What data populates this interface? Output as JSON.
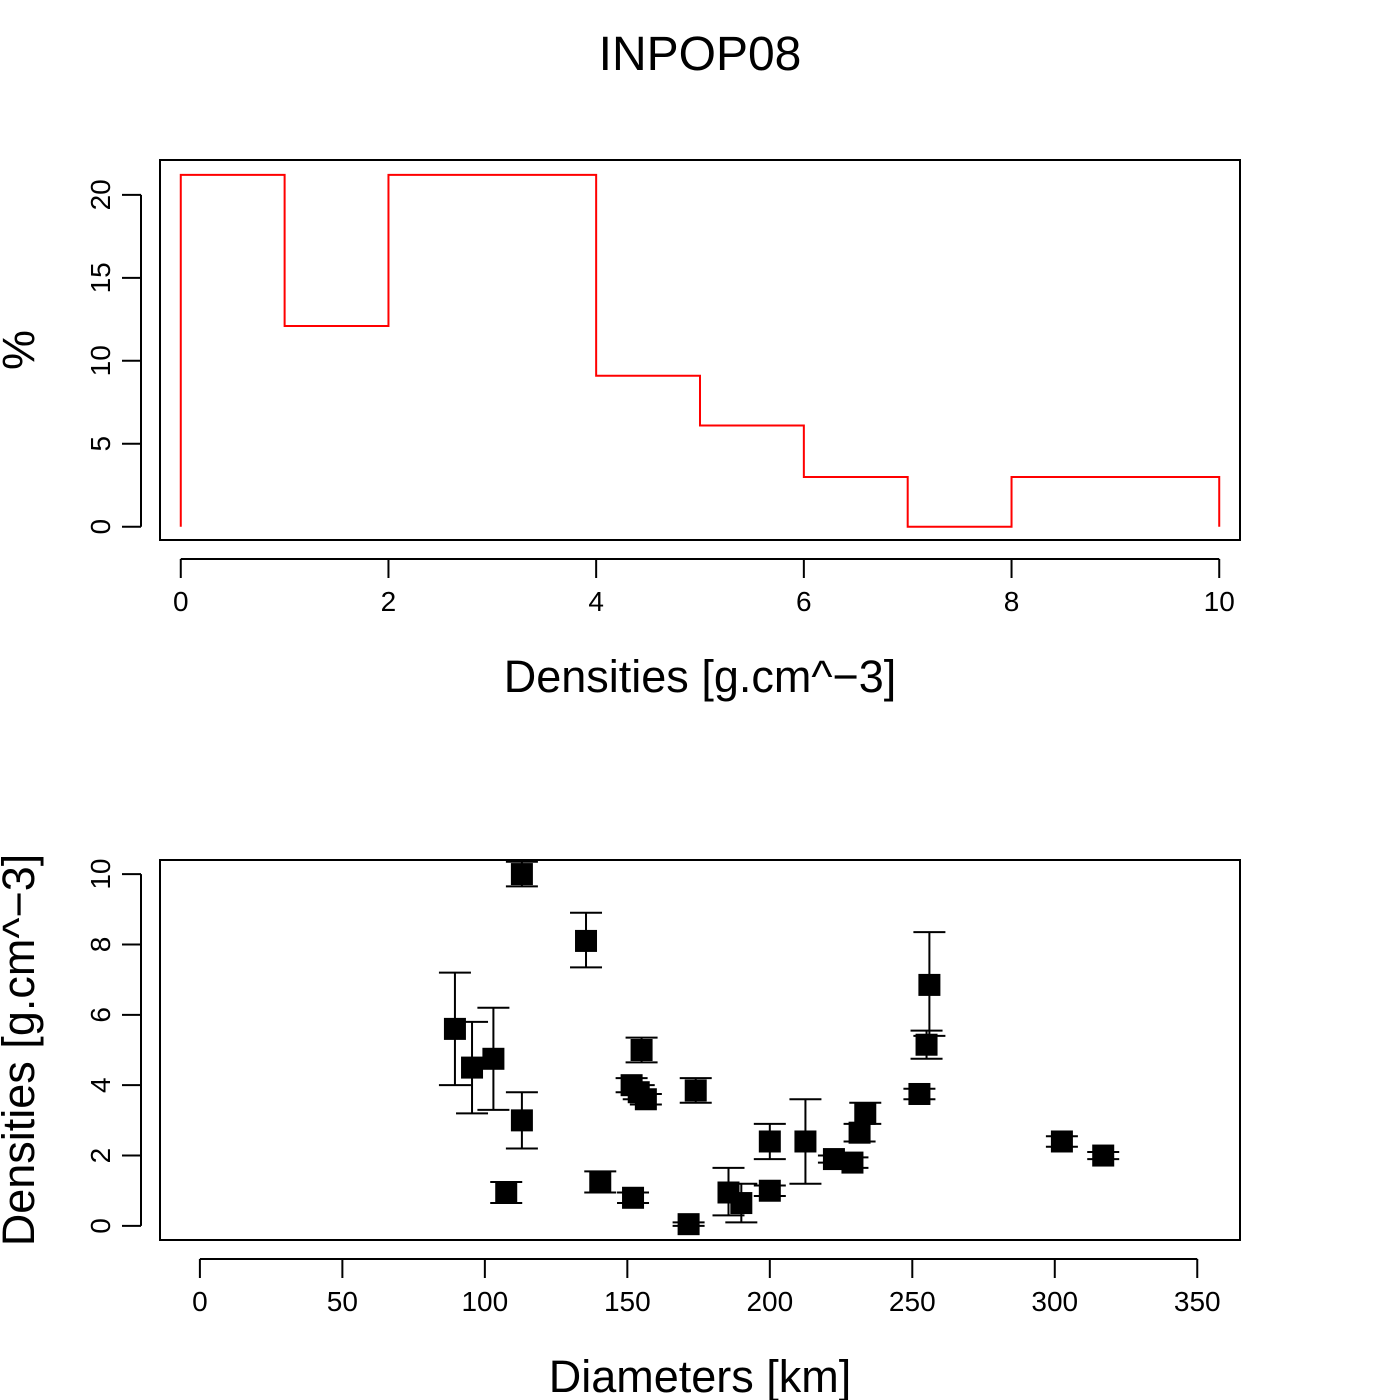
{
  "title": "INPOP08",
  "chart_data": [
    {
      "type": "histogram",
      "xlabel": "Densities [g.cm^−3]",
      "ylabel": "%",
      "xlim": [
        -0.2,
        10.2
      ],
      "ylim": [
        -0.8,
        22.1
      ],
      "xticks": [
        0,
        2,
        4,
        6,
        8,
        10
      ],
      "yticks": [
        0,
        5,
        10,
        15,
        20
      ],
      "line_color": "#ff0000",
      "bins": [
        0,
        1,
        2,
        3,
        4,
        5,
        6,
        7,
        8,
        9,
        10
      ],
      "values": [
        21.2,
        12.1,
        21.2,
        21.2,
        9.1,
        6.1,
        3.0,
        0,
        3.0,
        3.0
      ]
    },
    {
      "type": "scatter",
      "xlabel": "Diameters [km]",
      "ylabel": "Densities [g.cm^−3]",
      "xlim": [
        -14,
        365
      ],
      "ylim": [
        -0.4,
        10.4
      ],
      "xticks": [
        0,
        50,
        100,
        150,
        200,
        250,
        300,
        350
      ],
      "yticks": [
        0,
        2,
        4,
        6,
        8,
        10
      ],
      "marker": "square",
      "marker_color": "#000000",
      "points": [
        {
          "x": 89.5,
          "y": 5.6,
          "lo": 4.0,
          "hi": 7.2
        },
        {
          "x": 95.5,
          "y": 4.5,
          "lo": 3.2,
          "hi": 5.8
        },
        {
          "x": 103,
          "y": 4.75,
          "lo": 3.3,
          "hi": 6.2
        },
        {
          "x": 107.5,
          "y": 0.95,
          "lo": 0.65,
          "hi": 1.25
        },
        {
          "x": 113,
          "y": 3.0,
          "lo": 2.2,
          "hi": 3.8
        },
        {
          "x": 113,
          "y": 10.0,
          "lo": 9.65,
          "hi": 10.35
        },
        {
          "x": 135.5,
          "y": 8.1,
          "lo": 7.35,
          "hi": 8.9
        },
        {
          "x": 140.5,
          "y": 1.25,
          "lo": 0.95,
          "hi": 1.55
        },
        {
          "x": 151.5,
          "y": 4.0,
          "lo": 3.8,
          "hi": 4.2
        },
        {
          "x": 152,
          "y": 0.8,
          "lo": 0.65,
          "hi": 0.95
        },
        {
          "x": 154,
          "y": 3.8,
          "lo": 3.6,
          "hi": 4.0
        },
        {
          "x": 155,
          "y": 5.0,
          "lo": 4.65,
          "hi": 5.35
        },
        {
          "x": 156.5,
          "y": 3.6,
          "lo": 3.45,
          "hi": 3.75
        },
        {
          "x": 171.5,
          "y": 0.05,
          "lo": 0.0,
          "hi": 0.1
        },
        {
          "x": 174,
          "y": 3.85,
          "lo": 3.5,
          "hi": 4.2
        },
        {
          "x": 185.5,
          "y": 0.95,
          "lo": 0.3,
          "hi": 1.65
        },
        {
          "x": 190,
          "y": 0.65,
          "lo": 0.1,
          "hi": 1.2
        },
        {
          "x": 200,
          "y": 1.0,
          "lo": 0.85,
          "hi": 1.15
        },
        {
          "x": 200,
          "y": 2.4,
          "lo": 1.9,
          "hi": 2.9
        },
        {
          "x": 212.5,
          "y": 2.4,
          "lo": 1.2,
          "hi": 3.6
        },
        {
          "x": 222.5,
          "y": 1.9,
          "lo": 1.8,
          "hi": 2.0
        },
        {
          "x": 229,
          "y": 1.8,
          "lo": 1.65,
          "hi": 1.95
        },
        {
          "x": 231.5,
          "y": 2.65,
          "lo": 2.4,
          "hi": 2.9
        },
        {
          "x": 233.5,
          "y": 3.2,
          "lo": 2.9,
          "hi": 3.5
        },
        {
          "x": 252.5,
          "y": 3.75,
          "lo": 3.6,
          "hi": 3.9
        },
        {
          "x": 255,
          "y": 5.15,
          "lo": 4.75,
          "hi": 5.55
        },
        {
          "x": 256,
          "y": 6.85,
          "lo": 5.4,
          "hi": 8.35
        },
        {
          "x": 302.5,
          "y": 2.4,
          "lo": 2.25,
          "hi": 2.55
        },
        {
          "x": 317,
          "y": 2.0,
          "lo": 1.9,
          "hi": 2.1
        }
      ]
    }
  ]
}
